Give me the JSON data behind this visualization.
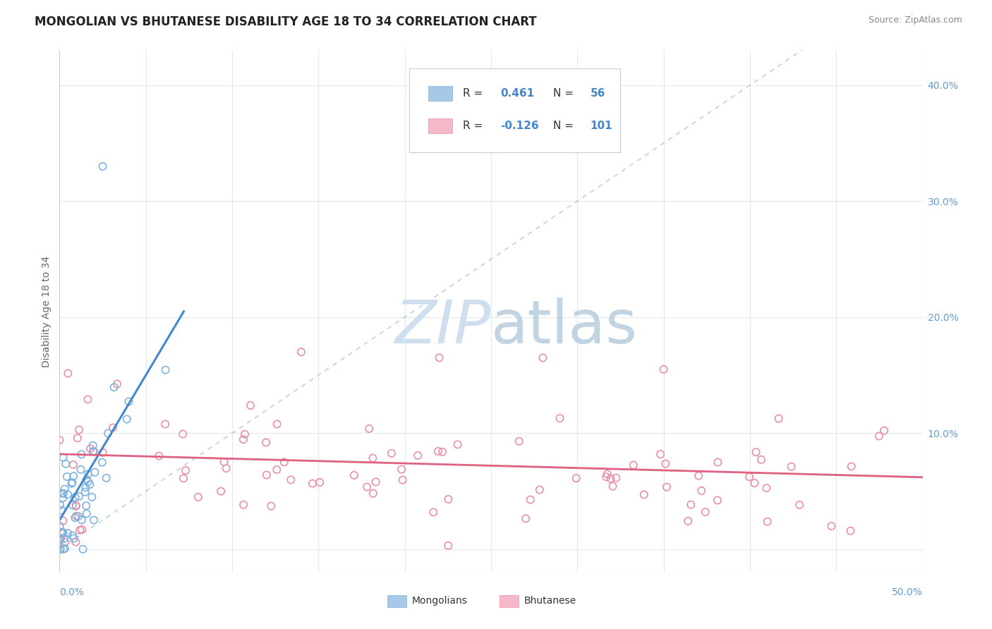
{
  "title": "MONGOLIAN VS BHUTANESE DISABILITY AGE 18 TO 34 CORRELATION CHART",
  "source": "Source: ZipAtlas.com",
  "ylabel": "Disability Age 18 to 34",
  "right_ytick_vals": [
    0.0,
    0.1,
    0.2,
    0.3,
    0.4
  ],
  "right_ytick_labels": [
    "",
    "10.0%",
    "20.0%",
    "30.0%",
    "40.0%"
  ],
  "xlim": [
    0.0,
    0.5
  ],
  "ylim": [
    -0.02,
    0.43
  ],
  "mongolian_R": 0.461,
  "mongolian_N": 56,
  "bhutanese_R": -0.126,
  "bhutanese_N": 101,
  "mongolian_color": "#a8c8e8",
  "mongolian_edge_color": "#7eb3e0",
  "mongolian_line_color": "#4488cc",
  "bhutanese_color": "#f5b8c8",
  "bhutanese_edge_color": "#e890a8",
  "bhutanese_line_color": "#e06080",
  "background_color": "#ffffff",
  "grid_color": "#e0e8f0",
  "watermark_color": "#d0dff0",
  "title_fontsize": 12,
  "source_fontsize": 9,
  "tick_label_color": "#6699cc",
  "axis_label_color": "#666666",
  "legend_R_N_color": "#4488cc",
  "legend_text_color": "#333333"
}
